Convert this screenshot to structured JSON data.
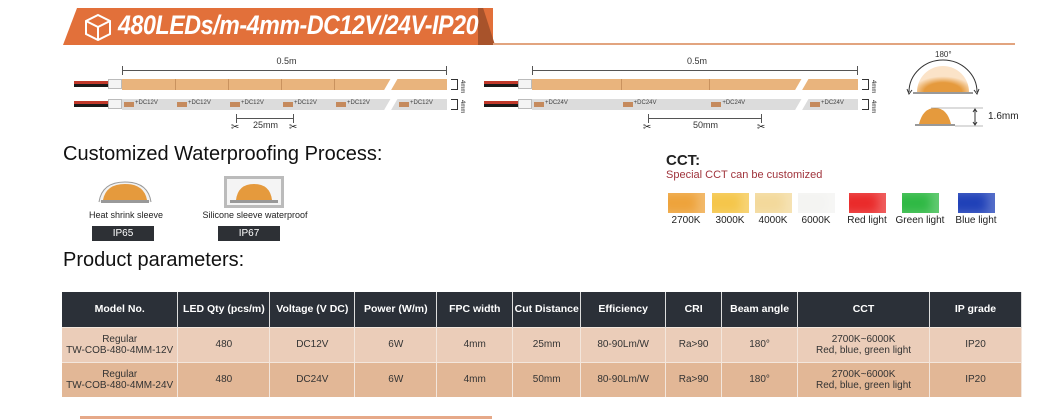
{
  "header": {
    "title": "480LEDs/m-4mm-DC12V/24V-IP20",
    "icon": "cube-box-icon",
    "accent": "#e2703a"
  },
  "strip12": {
    "length": "0.5m",
    "width": "4mm",
    "voltage": "+DC12V",
    "cut": "25mm",
    "segments": 6
  },
  "strip24": {
    "length": "0.5m",
    "width": "4mm",
    "voltage": "+DC24V",
    "cut": "50mm",
    "segments": 4
  },
  "beam": {
    "angle": "180°",
    "height": "1.6mm"
  },
  "waterproof": {
    "heading": "Customized Waterproofing Process:",
    "options": [
      {
        "label": "Heat shrink sleeve",
        "ip": "IP65"
      },
      {
        "label": "Silicone sleeve waterproof",
        "ip": "IP67"
      }
    ]
  },
  "cct": {
    "heading": "CCT:",
    "note": "Special CCT can be customized",
    "swatches": [
      {
        "label": "2700K",
        "color": "#eea33b"
      },
      {
        "label": "3000K",
        "color": "#f5c64a"
      },
      {
        "label": "4000K",
        "color": "#f3d99b"
      },
      {
        "label": "6000K",
        "color": "#f4f4f2"
      },
      {
        "label": "Red light",
        "color": "#ea2a2a"
      },
      {
        "label": "Green light",
        "color": "#2fb944"
      },
      {
        "label": "Blue light",
        "color": "#1f40b8"
      }
    ]
  },
  "params": {
    "heading": "Product parameters:",
    "columns": [
      "Model No.",
      "LED Qty (pcs/m)",
      "Voltage (V DC)",
      "Power (W/m)",
      "FPC width",
      "Cut Distance",
      "Efficiency",
      "CRI",
      "Beam angle",
      "CCT",
      "IP grade"
    ],
    "rows": [
      {
        "model": [
          "Regular",
          "TW-COB-480-4MM-12V"
        ],
        "qty": "480",
        "voltage": "DC12V",
        "power": "6W",
        "fpc": "4mm",
        "cut": "25mm",
        "eff": "80-90Lm/W",
        "cri": "Ra>90",
        "beam": "180°",
        "cct": [
          "2700K~6000K",
          "Red, blue, green light"
        ],
        "ip": "IP20"
      },
      {
        "model": [
          "Regular",
          "TW-COB-480-4MM-24V"
        ],
        "qty": "480",
        "voltage": "DC24V",
        "power": "6W",
        "fpc": "4mm",
        "cut": "50mm",
        "eff": "80-90Lm/W",
        "cri": "Ra>90",
        "beam": "180°",
        "cct": [
          "2700K~6000K",
          "Red, blue, green light"
        ],
        "ip": "IP20"
      }
    ]
  }
}
